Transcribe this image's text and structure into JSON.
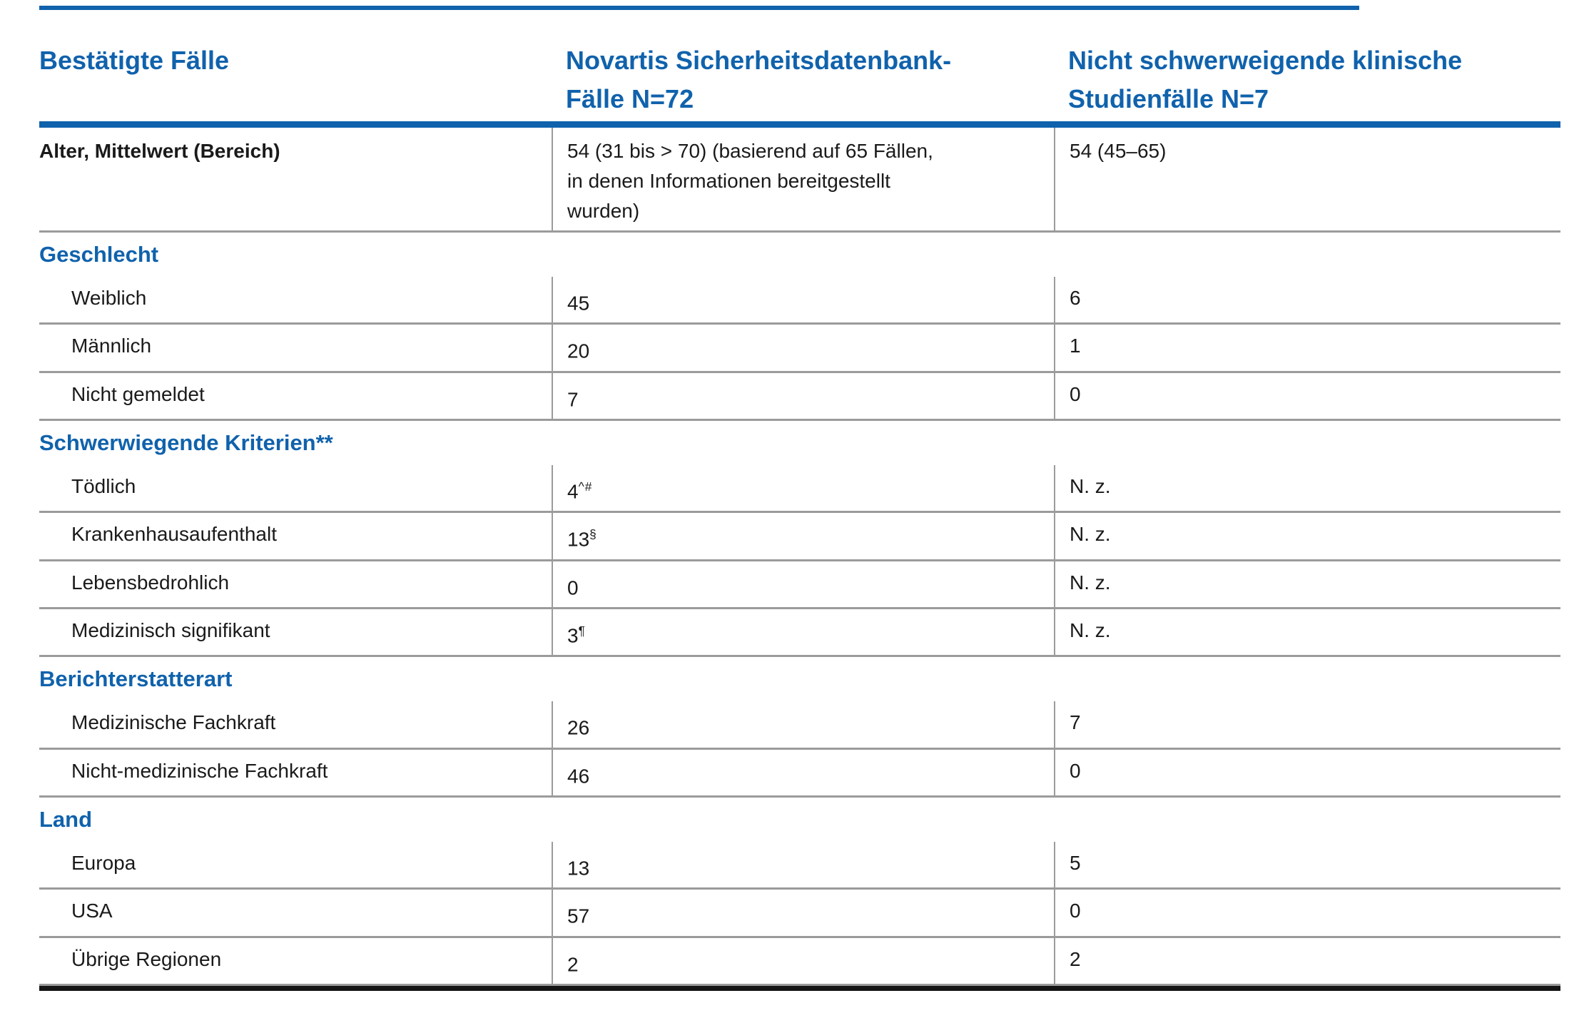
{
  "table": {
    "col_headers": [
      "Bestätigte Fälle",
      "Novartis Sicherheitsdatenbank-Fälle N=72",
      "Nicht schwerweigende klinische Studienfälle N=7"
    ],
    "age_row": {
      "label": "Alter, Mittelwert (Bereich)",
      "db": "54 (31 bis > 70) (basierend auf 65 Fällen, in denen Informationen bereitgestellt wurden)",
      "study": "54 (45–65)"
    },
    "sections": [
      {
        "title": "Geschlecht",
        "rows": [
          {
            "label": "Weiblich",
            "db": "45",
            "db_sup": "",
            "study": "6"
          },
          {
            "label": "Männlich",
            "db": "20",
            "db_sup": "",
            "study": "1"
          },
          {
            "label": "Nicht gemeldet",
            "db": "7",
            "db_sup": "",
            "study": "0"
          }
        ]
      },
      {
        "title": "Schwerwiegende Kriterien**",
        "rows": [
          {
            "label": "Tödlich",
            "db": "4",
            "db_sup": "^#",
            "study": "N. z."
          },
          {
            "label": "Krankenhausaufenthalt",
            "db": "13",
            "db_sup": "§",
            "study": "N. z."
          },
          {
            "label": "Lebensbedrohlich",
            "db": "0",
            "db_sup": "",
            "study": "N. z."
          },
          {
            "label": "Medizinisch signifikant",
            "db": "3",
            "db_sup": "¶",
            "study": "N. z."
          }
        ]
      },
      {
        "title": "Berichterstatterart",
        "rows": [
          {
            "label": "Medizinische Fachkraft",
            "db": "26",
            "db_sup": "",
            "study": "7"
          },
          {
            "label": "Nicht-medizinische Fachkraft",
            "db": "46",
            "db_sup": "",
            "study": "0"
          }
        ]
      },
      {
        "title": "Land",
        "rows": [
          {
            "label": "Europa",
            "db": "13",
            "db_sup": "",
            "study": "5"
          },
          {
            "label": "USA",
            "db": "57",
            "db_sup": "",
            "study": "0"
          },
          {
            "label": "Übrige Regionen",
            "db": "2",
            "db_sup": "",
            "study": "2"
          }
        ]
      }
    ],
    "colors": {
      "accent_blue": "#1062ac",
      "border_gray": "#9b9b9b",
      "bottom_rule_black": "#141414"
    }
  }
}
